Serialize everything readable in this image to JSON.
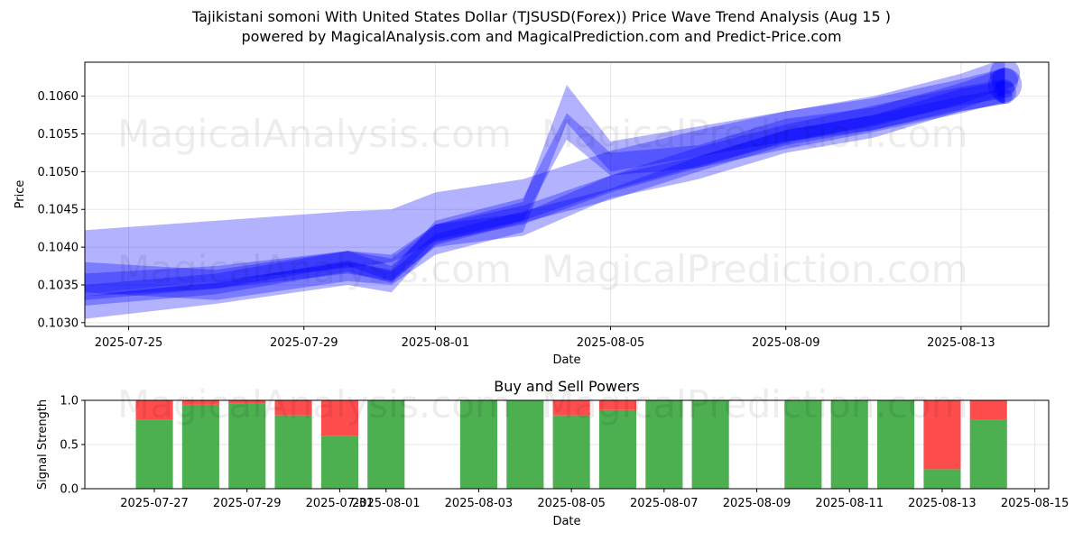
{
  "figure": {
    "title_line1": "Tajikistani somoni With United States Dollar (TJSUSD(Forex)) Price Wave Trend Analysis (Aug 15 )",
    "title_line2": "powered by MagicalAnalysis.com and MagicalPrediction.com and Predict-Price.com",
    "watermarks": [
      "MagicalAnalysis.com",
      "MagicalPrediction.com"
    ]
  },
  "chart_data": [
    {
      "type": "area",
      "title": "",
      "xlabel": "Date",
      "ylabel": "Price",
      "x_ticks": [
        "2025-07-25",
        "2025-07-29",
        "2025-08-01",
        "2025-08-05",
        "2025-08-09",
        "2025-08-13"
      ],
      "y_ticks": [
        "0.1030",
        "0.1035",
        "0.1040",
        "0.1045",
        "0.1050",
        "0.1055",
        "0.1060"
      ],
      "xlim": [
        "2025-07-24",
        "2025-08-15"
      ],
      "ylim": [
        0.10295,
        0.10645
      ],
      "grid": true,
      "band_color": "#0000ff",
      "series": [
        {
          "x": [
            "2025-07-24",
            "2025-07-27",
            "2025-07-30",
            "2025-07-31",
            "2025-08-01",
            "2025-08-03",
            "2025-08-05",
            "2025-08-07",
            "2025-08-09",
            "2025-08-11",
            "2025-08-13",
            "2025-08-14"
          ],
          "y": [
            0.1033,
            0.10345,
            0.10375,
            0.1036,
            0.1041,
            0.1044,
            0.1047,
            0.1051,
            0.10545,
            0.10565,
            0.1059,
            0.106
          ],
          "width": [
            0.00015,
            0.00015,
            0.00015,
            0.00015,
            0.00015,
            0.00015,
            0.00015,
            0.0002,
            0.0002,
            0.0002,
            0.0002,
            0.0002
          ]
        },
        {
          "x": [
            "2025-07-24",
            "2025-07-27",
            "2025-07-30",
            "2025-07-31",
            "2025-08-01",
            "2025-08-03",
            "2025-08-05",
            "2025-08-07",
            "2025-08-09",
            "2025-08-11",
            "2025-08-13",
            "2025-08-14"
          ],
          "y": [
            0.1034,
            0.10355,
            0.10385,
            0.10365,
            0.1042,
            0.10445,
            0.10485,
            0.1052,
            0.1055,
            0.10575,
            0.106,
            0.1061
          ],
          "width": [
            0.0002,
            0.0002,
            0.0002,
            0.0002,
            0.0002,
            0.0002,
            0.0002,
            0.00025,
            0.00025,
            0.00025,
            0.00025,
            0.00025
          ]
        },
        {
          "x": [
            "2025-07-24",
            "2025-07-27",
            "2025-07-30",
            "2025-07-31",
            "2025-08-01",
            "2025-08-03",
            "2025-08-05",
            "2025-08-07",
            "2025-08-09",
            "2025-08-11",
            "2025-08-13",
            "2025-08-14"
          ],
          "y": [
            0.1035,
            0.1036,
            0.1038,
            0.1037,
            0.10415,
            0.1043,
            0.1048,
            0.10505,
            0.1054,
            0.1056,
            0.10595,
            0.10605
          ],
          "width": [
            0.0003,
            0.0003,
            0.0003,
            0.0003,
            0.0003,
            0.0003,
            0.0003,
            0.0003,
            0.0003,
            0.0003,
            0.0003,
            0.0003
          ]
        },
        {
          "x": [
            "2025-07-24",
            "2025-07-27",
            "2025-07-30",
            "2025-07-31",
            "2025-08-01",
            "2025-08-03",
            "2025-08-04",
            "2025-08-05",
            "2025-08-07",
            "2025-08-09",
            "2025-08-11",
            "2025-08-13",
            "2025-08-14"
          ],
          "y": [
            0.1032,
            0.1034,
            0.10365,
            0.10355,
            0.1042,
            0.1045,
            0.1056,
            0.1051,
            0.1052,
            0.10555,
            0.1057,
            0.106,
            0.1062
          ],
          "width": [
            0.0003,
            0.0003,
            0.0003,
            0.0003,
            0.0003,
            0.0003,
            0.00035,
            0.0003,
            0.0003,
            0.0003,
            0.0003,
            0.00035,
            0.00035
          ]
        },
        {
          "x": [
            "2025-07-24",
            "2025-07-27",
            "2025-07-30",
            "2025-07-31",
            "2025-08-01",
            "2025-08-03",
            "2025-08-04",
            "2025-08-05",
            "2025-08-07",
            "2025-08-09",
            "2025-08-11",
            "2025-08-13",
            "2025-08-14"
          ],
          "y": [
            0.1036,
            0.1035,
            0.10375,
            0.1037,
            0.1041,
            0.1044,
            0.1059,
            0.1052,
            0.1054,
            0.1056,
            0.1058,
            0.1061,
            0.1063
          ],
          "width": [
            0.0004,
            0.0004,
            0.0004,
            0.0004,
            0.0004,
            0.0004,
            0.0005,
            0.0004,
            0.0004,
            0.0004,
            0.0004,
            0.0004,
            0.0004
          ]
        },
        {
          "x": [
            "2025-07-24",
            "2025-07-27",
            "2025-07-30",
            "2025-07-31",
            "2025-08-01",
            "2025-08-03",
            "2025-08-05",
            "2025-08-07",
            "2025-08-09",
            "2025-08-11",
            "2025-08-13",
            "2025-08-14"
          ],
          "y": [
            0.1038,
            0.10395,
            0.1041,
            0.10415,
            0.1044,
            0.1046,
            0.105,
            0.1053,
            0.10555,
            0.10575,
            0.106,
            0.10615
          ],
          "width": [
            0.00085,
            0.0008,
            0.00075,
            0.0007,
            0.00065,
            0.0006,
            0.00055,
            0.0005,
            0.0005,
            0.00045,
            0.00045,
            0.00045
          ]
        }
      ]
    },
    {
      "type": "bar",
      "title": "Buy and Sell Powers",
      "xlabel": "Date",
      "ylabel": "Signal Strength",
      "x_ticks": [
        "2025-07-27",
        "2025-07-29",
        "2025-07-31",
        "2025-08-01",
        "2025-08-03",
        "2025-08-05",
        "2025-08-07",
        "2025-08-09",
        "2025-08-11",
        "2025-08-13",
        "2025-08-15"
      ],
      "y_ticks": [
        "0.0",
        "0.5",
        "1.0"
      ],
      "xlim": [
        "2025-07-25.5",
        "2025-08-15.3"
      ],
      "ylim": [
        0,
        1
      ],
      "grid": true,
      "colors": {
        "buy": "#4caf50",
        "sell": "#ff4d4d"
      },
      "dates": [
        "2025-07-27",
        "2025-07-28",
        "2025-07-29",
        "2025-07-30",
        "2025-07-31",
        "2025-08-01",
        "2025-08-03",
        "2025-08-04",
        "2025-08-05",
        "2025-08-06",
        "2025-08-07",
        "2025-08-08",
        "2025-08-10",
        "2025-08-11",
        "2025-08-12",
        "2025-08-13",
        "2025-08-14"
      ],
      "buy": [
        0.78,
        0.95,
        0.96,
        0.83,
        0.6,
        1.0,
        1.0,
        1.0,
        0.83,
        0.89,
        1.0,
        1.0,
        1.0,
        1.0,
        1.0,
        0.22,
        0.78
      ],
      "sell": [
        0.22,
        0.05,
        0.04,
        0.17,
        0.4,
        0.0,
        0.0,
        0.0,
        0.17,
        0.11,
        0.0,
        0.0,
        0.0,
        0.0,
        0.0,
        0.78,
        0.22
      ]
    }
  ]
}
